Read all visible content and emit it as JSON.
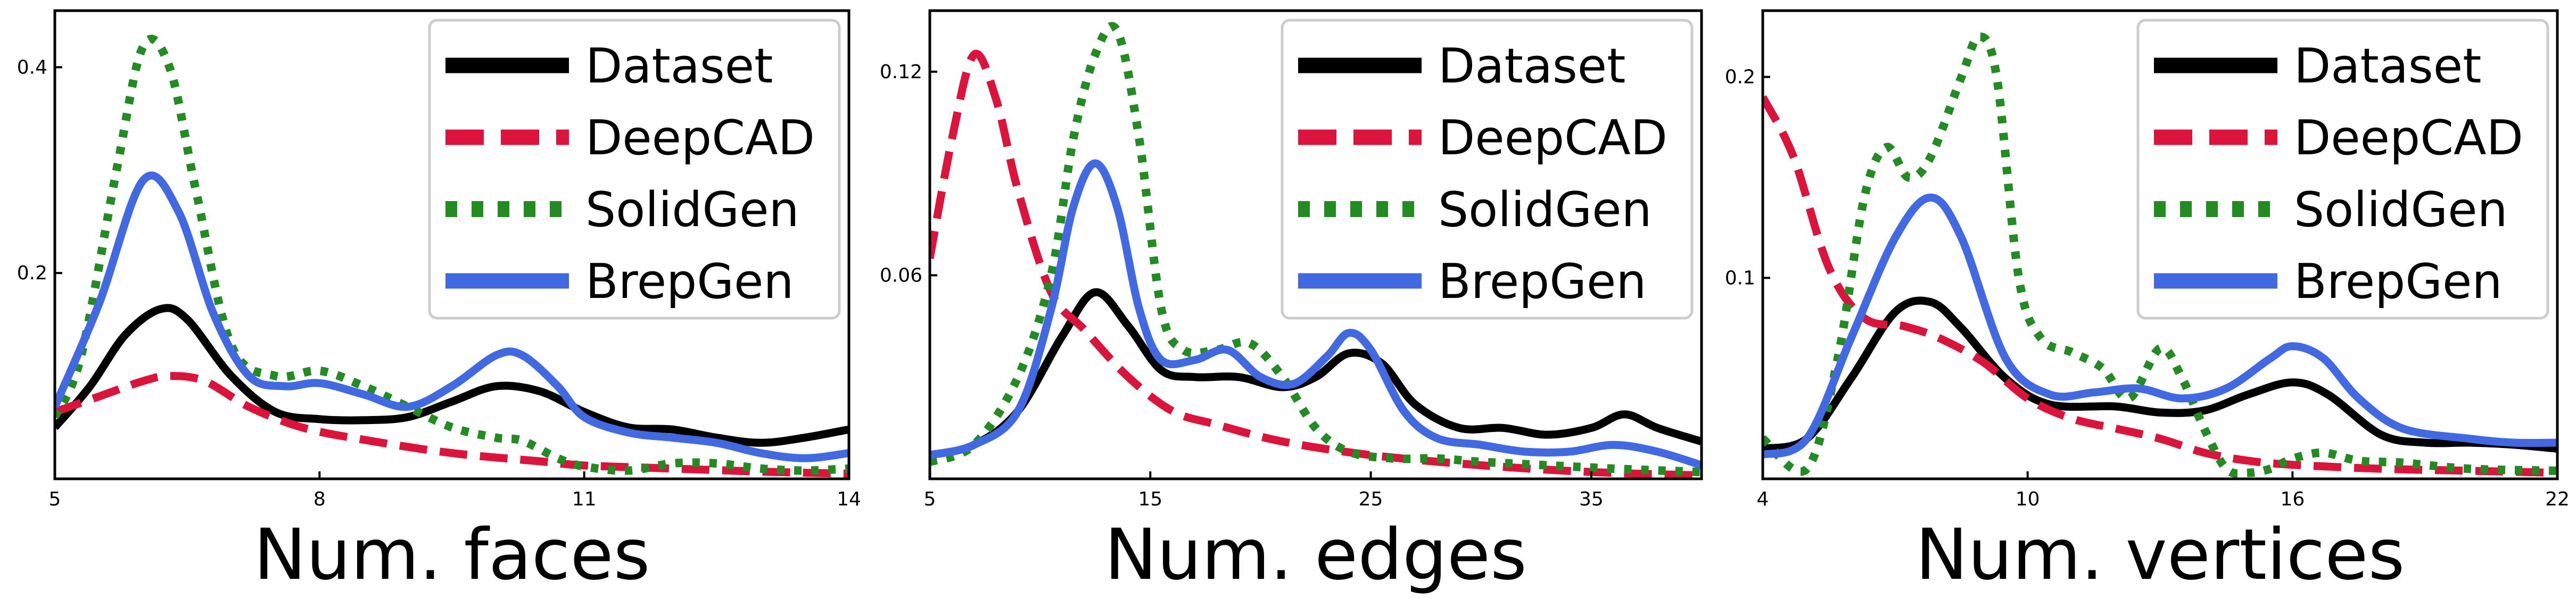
{
  "series_styles": [
    {
      "name": "Dataset",
      "color": "#000000"
    },
    {
      "name": "DeepCAD",
      "color": "#dc143c"
    },
    {
      "name": "SolidGen",
      "color": "#228b22"
    },
    {
      "name": "BrepGen",
      "color": "#4169e1"
    }
  ],
  "chart_data": [
    {
      "type": "line",
      "xlabel": "Num. faces",
      "ylabel": "",
      "xlim": [
        5,
        14
      ],
      "ylim": [
        0,
        0.455
      ],
      "xticks": [
        5,
        8,
        11,
        14
      ],
      "yticks": [
        0.2,
        0.4
      ],
      "ytick_labels": [
        "0.2",
        "0.4"
      ],
      "legend": "top-right",
      "grid": false,
      "series": [
        {
          "name": "Dataset",
          "points": [
            [
              5,
              0.05
            ],
            [
              5.4,
              0.09
            ],
            [
              5.8,
              0.14
            ],
            [
              6.2,
              0.165
            ],
            [
              6.5,
              0.155
            ],
            [
              7,
              0.1
            ],
            [
              7.5,
              0.065
            ],
            [
              8,
              0.058
            ],
            [
              8.5,
              0.057
            ],
            [
              9,
              0.06
            ],
            [
              9.5,
              0.075
            ],
            [
              10,
              0.09
            ],
            [
              10.5,
              0.085
            ],
            [
              11,
              0.065
            ],
            [
              11.5,
              0.05
            ],
            [
              12,
              0.048
            ],
            [
              12.5,
              0.04
            ],
            [
              13,
              0.035
            ],
            [
              13.5,
              0.04
            ],
            [
              14,
              0.048
            ]
          ]
        },
        {
          "name": "DeepCAD",
          "points": [
            [
              5,
              0.065
            ],
            [
              5.5,
              0.08
            ],
            [
              6,
              0.095
            ],
            [
              6.3,
              0.1
            ],
            [
              6.7,
              0.095
            ],
            [
              7.2,
              0.07
            ],
            [
              7.8,
              0.05
            ],
            [
              8.5,
              0.038
            ],
            [
              9.5,
              0.025
            ],
            [
              10.5,
              0.017
            ],
            [
              11,
              0.013
            ],
            [
              12,
              0.01
            ],
            [
              13,
              0.007
            ],
            [
              14,
              0.005
            ]
          ]
        },
        {
          "name": "SolidGen",
          "points": [
            [
              5,
              0.06
            ],
            [
              5.3,
              0.12
            ],
            [
              5.7,
              0.3
            ],
            [
              6,
              0.42
            ],
            [
              6.3,
              0.4
            ],
            [
              6.6,
              0.28
            ],
            [
              7,
              0.13
            ],
            [
              7.5,
              0.1
            ],
            [
              8,
              0.105
            ],
            [
              8.5,
              0.09
            ],
            [
              9,
              0.07
            ],
            [
              9.5,
              0.05
            ],
            [
              10,
              0.04
            ],
            [
              10.3,
              0.037
            ],
            [
              10.7,
              0.02
            ],
            [
              11,
              0.012
            ],
            [
              11.5,
              0.008
            ],
            [
              12,
              0.015
            ],
            [
              12.5,
              0.015
            ],
            [
              13,
              0.01
            ],
            [
              13.5,
              0.008
            ],
            [
              14,
              0.01
            ]
          ]
        },
        {
          "name": "BrepGen",
          "points": [
            [
              5,
              0.07
            ],
            [
              5.5,
              0.17
            ],
            [
              6,
              0.29
            ],
            [
              6.4,
              0.26
            ],
            [
              6.8,
              0.16
            ],
            [
              7.2,
              0.1
            ],
            [
              7.6,
              0.09
            ],
            [
              8,
              0.093
            ],
            [
              8.5,
              0.082
            ],
            [
              9,
              0.07
            ],
            [
              9.5,
              0.09
            ],
            [
              10,
              0.12
            ],
            [
              10.3,
              0.12
            ],
            [
              10.7,
              0.09
            ],
            [
              11,
              0.06
            ],
            [
              11.5,
              0.045
            ],
            [
              12,
              0.04
            ],
            [
              12.5,
              0.035
            ],
            [
              13,
              0.025
            ],
            [
              13.5,
              0.02
            ],
            [
              14,
              0.025
            ]
          ]
        }
      ]
    },
    {
      "type": "line",
      "xlabel": "Num. edges",
      "ylabel": "",
      "xlim": [
        5,
        40
      ],
      "ylim": [
        0,
        0.138
      ],
      "xticks": [
        5,
        15,
        25,
        35
      ],
      "yticks": [
        0.06,
        0.12
      ],
      "ytick_labels": [
        "0.06",
        "0.12"
      ],
      "legend": "top-right",
      "grid": false,
      "series": [
        {
          "name": "Dataset",
          "points": [
            [
              5,
              0.007
            ],
            [
              7,
              0.01
            ],
            [
              9,
              0.02
            ],
            [
              11,
              0.042
            ],
            [
              12.5,
              0.055
            ],
            [
              14,
              0.045
            ],
            [
              15.5,
              0.032
            ],
            [
              17,
              0.03
            ],
            [
              19,
              0.03
            ],
            [
              21,
              0.027
            ],
            [
              22.5,
              0.03
            ],
            [
              24,
              0.037
            ],
            [
              25.5,
              0.034
            ],
            [
              27,
              0.022
            ],
            [
              29,
              0.015
            ],
            [
              31,
              0.015
            ],
            [
              33,
              0.013
            ],
            [
              35,
              0.015
            ],
            [
              36.5,
              0.019
            ],
            [
              38,
              0.015
            ],
            [
              40,
              0.011
            ]
          ]
        },
        {
          "name": "DeepCAD",
          "points": [
            [
              5,
              0.065
            ],
            [
              6,
              0.1
            ],
            [
              7,
              0.125
            ],
            [
              8,
              0.112
            ],
            [
              9,
              0.085
            ],
            [
              10.5,
              0.055
            ],
            [
              12,
              0.044
            ],
            [
              14,
              0.03
            ],
            [
              16,
              0.02
            ],
            [
              18,
              0.016
            ],
            [
              21,
              0.011
            ],
            [
              25,
              0.007
            ],
            [
              30,
              0.004
            ],
            [
              35,
              0.002
            ],
            [
              40,
              0.001
            ]
          ]
        },
        {
          "name": "SolidGen",
          "points": [
            [
              5,
              0.005
            ],
            [
              7,
              0.01
            ],
            [
              9,
              0.03
            ],
            [
              10.5,
              0.06
            ],
            [
              11.5,
              0.1
            ],
            [
              12.5,
              0.125
            ],
            [
              13.5,
              0.132
            ],
            [
              14.5,
              0.1
            ],
            [
              15.5,
              0.05
            ],
            [
              16.5,
              0.038
            ],
            [
              18,
              0.038
            ],
            [
              19.5,
              0.04
            ],
            [
              21,
              0.03
            ],
            [
              22.5,
              0.015
            ],
            [
              24,
              0.008
            ],
            [
              26,
              0.006
            ],
            [
              28,
              0.006
            ],
            [
              30,
              0.005
            ],
            [
              33,
              0.004
            ],
            [
              36,
              0.003
            ],
            [
              40,
              0.002
            ]
          ]
        },
        {
          "name": "BrepGen",
          "points": [
            [
              5,
              0.007
            ],
            [
              7,
              0.01
            ],
            [
              9,
              0.02
            ],
            [
              10.5,
              0.05
            ],
            [
              11.5,
              0.08
            ],
            [
              12.5,
              0.093
            ],
            [
              13.5,
              0.08
            ],
            [
              14.5,
              0.05
            ],
            [
              15.5,
              0.035
            ],
            [
              17,
              0.035
            ],
            [
              18.5,
              0.038
            ],
            [
              20,
              0.03
            ],
            [
              21.5,
              0.028
            ],
            [
              23,
              0.036
            ],
            [
              24,
              0.043
            ],
            [
              25,
              0.038
            ],
            [
              26.5,
              0.02
            ],
            [
              28,
              0.012
            ],
            [
              30,
              0.01
            ],
            [
              32,
              0.008
            ],
            [
              34,
              0.008
            ],
            [
              36,
              0.01
            ],
            [
              38,
              0.008
            ],
            [
              40,
              0.004
            ]
          ]
        }
      ]
    },
    {
      "type": "line",
      "xlabel": "Num. vertices",
      "ylabel": "",
      "xlim": [
        4,
        22
      ],
      "ylim": [
        0,
        0.233
      ],
      "xticks": [
        4,
        10,
        16,
        22
      ],
      "yticks": [
        0.1,
        0.2
      ],
      "ytick_labels": [
        "0.1",
        "0.2"
      ],
      "legend": "top-right",
      "grid": false,
      "series": [
        {
          "name": "Dataset",
          "points": [
            [
              4,
              0.015
            ],
            [
              5,
              0.02
            ],
            [
              6,
              0.05
            ],
            [
              7,
              0.083
            ],
            [
              7.8,
              0.088
            ],
            [
              8.5,
              0.075
            ],
            [
              9.5,
              0.05
            ],
            [
              10.5,
              0.037
            ],
            [
              12,
              0.036
            ],
            [
              13,
              0.033
            ],
            [
              14,
              0.034
            ],
            [
              15,
              0.042
            ],
            [
              16,
              0.048
            ],
            [
              16.8,
              0.042
            ],
            [
              18,
              0.022
            ],
            [
              19,
              0.018
            ],
            [
              20,
              0.018
            ],
            [
              21,
              0.017
            ],
            [
              22,
              0.015
            ]
          ]
        },
        {
          "name": "DeepCAD",
          "points": [
            [
              4,
              0.19
            ],
            [
              4.7,
              0.16
            ],
            [
              5.5,
              0.105
            ],
            [
              6.3,
              0.08
            ],
            [
              7.2,
              0.076
            ],
            [
              8,
              0.07
            ],
            [
              9,
              0.058
            ],
            [
              10,
              0.04
            ],
            [
              11,
              0.03
            ],
            [
              12,
              0.025
            ],
            [
              13,
              0.02
            ],
            [
              14,
              0.013
            ],
            [
              15,
              0.009
            ],
            [
              16,
              0.007
            ],
            [
              18,
              0.005
            ],
            [
              20,
              0.004
            ],
            [
              22,
              0.003
            ]
          ]
        },
        {
          "name": "SolidGen",
          "points": [
            [
              4,
              0.02
            ],
            [
              5,
              0.005
            ],
            [
              5.7,
              0.06
            ],
            [
              6.3,
              0.14
            ],
            [
              6.8,
              0.165
            ],
            [
              7.3,
              0.15
            ],
            [
              7.8,
              0.16
            ],
            [
              8.5,
              0.2
            ],
            [
              8.9,
              0.22
            ],
            [
              9.3,
              0.2
            ],
            [
              9.8,
              0.1
            ],
            [
              10.3,
              0.07
            ],
            [
              11,
              0.063
            ],
            [
              11.7,
              0.055
            ],
            [
              12.3,
              0.04
            ],
            [
              13,
              0.065
            ],
            [
              13.5,
              0.05
            ],
            [
              14,
              0.025
            ],
            [
              14.5,
              0.005
            ],
            [
              15,
              0.003
            ],
            [
              15.5,
              0.005
            ],
            [
              16,
              0.01
            ],
            [
              16.7,
              0.013
            ],
            [
              17.5,
              0.009
            ],
            [
              18.5,
              0.008
            ],
            [
              20,
              0.005
            ],
            [
              22,
              0.004
            ]
          ]
        },
        {
          "name": "BrepGen",
          "points": [
            [
              4,
              0.012
            ],
            [
              5,
              0.02
            ],
            [
              6,
              0.07
            ],
            [
              7,
              0.12
            ],
            [
              7.8,
              0.14
            ],
            [
              8.5,
              0.12
            ],
            [
              9.5,
              0.06
            ],
            [
              10.5,
              0.042
            ],
            [
              11.5,
              0.043
            ],
            [
              12.5,
              0.045
            ],
            [
              13.5,
              0.04
            ],
            [
              14.5,
              0.045
            ],
            [
              15.5,
              0.06
            ],
            [
              16,
              0.066
            ],
            [
              16.7,
              0.06
            ],
            [
              17.5,
              0.04
            ],
            [
              18.5,
              0.025
            ],
            [
              20,
              0.02
            ],
            [
              21,
              0.018
            ],
            [
              22,
              0.018
            ]
          ]
        }
      ]
    }
  ]
}
